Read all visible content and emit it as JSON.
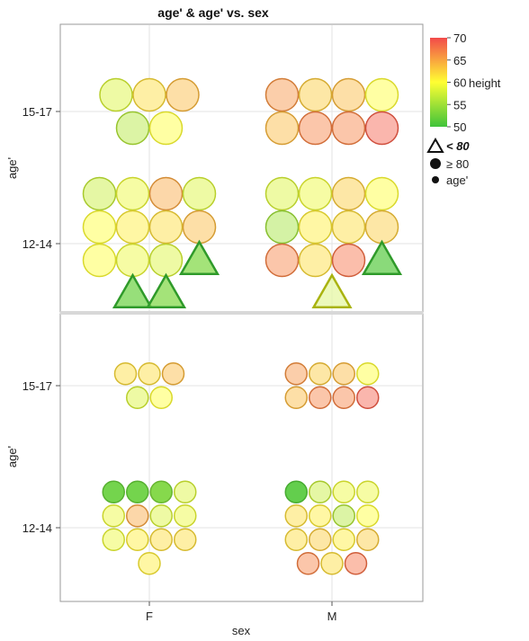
{
  "chart_data": {
    "type": "scatter",
    "title": "age' & age' vs. sex",
    "xlabel": "sex",
    "categories": [
      "F",
      "M"
    ],
    "panels": [
      {
        "ylabel": "age'",
        "y_categories": [
          "12-14",
          "15-17"
        ],
        "size_scale": "large",
        "points": [
          {
            "sex": "F",
            "age": "15-17",
            "height": 58,
            "weight": "high"
          },
          {
            "sex": "F",
            "age": "15-17",
            "height": 62,
            "weight": "high"
          },
          {
            "sex": "F",
            "age": "15-17",
            "height": 64,
            "weight": "high"
          },
          {
            "sex": "F",
            "age": "15-17",
            "height": 56,
            "weight": "high"
          },
          {
            "sex": "F",
            "age": "15-17",
            "height": 60,
            "weight": "high"
          },
          {
            "sex": "F",
            "age": "12-14",
            "height": 57,
            "weight": "high"
          },
          {
            "sex": "F",
            "age": "12-14",
            "height": 59,
            "weight": "high"
          },
          {
            "sex": "F",
            "age": "12-14",
            "height": 65,
            "weight": "high"
          },
          {
            "sex": "F",
            "age": "12-14",
            "height": 58,
            "weight": "high"
          },
          {
            "sex": "F",
            "age": "12-14",
            "height": 60,
            "weight": "high"
          },
          {
            "sex": "F",
            "age": "12-14",
            "height": 61,
            "weight": "high"
          },
          {
            "sex": "F",
            "age": "12-14",
            "height": 62,
            "weight": "high"
          },
          {
            "sex": "F",
            "age": "12-14",
            "height": 64,
            "weight": "high"
          },
          {
            "sex": "F",
            "age": "12-14",
            "height": 60,
            "weight": "high"
          },
          {
            "sex": "F",
            "age": "12-14",
            "height": 59,
            "weight": "high"
          },
          {
            "sex": "F",
            "age": "12-14",
            "height": 58,
            "weight": "high"
          },
          {
            "sex": "F",
            "age": "12-14",
            "height": 53,
            "weight": "low"
          },
          {
            "sex": "F",
            "age": "12-14",
            "height": 52,
            "weight": "low"
          },
          {
            "sex": "F",
            "age": "12-14",
            "height": 53,
            "weight": "low"
          },
          {
            "sex": "M",
            "age": "15-17",
            "height": 66,
            "weight": "high"
          },
          {
            "sex": "M",
            "age": "15-17",
            "height": 63,
            "weight": "high"
          },
          {
            "sex": "M",
            "age": "15-17",
            "height": 64,
            "weight": "high"
          },
          {
            "sex": "M",
            "age": "15-17",
            "height": 60,
            "weight": "high"
          },
          {
            "sex": "M",
            "age": "15-17",
            "height": 64,
            "weight": "high"
          },
          {
            "sex": "M",
            "age": "15-17",
            "height": 67,
            "weight": "high"
          },
          {
            "sex": "M",
            "age": "15-17",
            "height": 67,
            "weight": "high"
          },
          {
            "sex": "M",
            "age": "15-17",
            "height": 69,
            "weight": "high"
          },
          {
            "sex": "M",
            "age": "12-14",
            "height": 58,
            "weight": "high"
          },
          {
            "sex": "M",
            "age": "12-14",
            "height": 59,
            "weight": "high"
          },
          {
            "sex": "M",
            "age": "12-14",
            "height": 63,
            "weight": "high"
          },
          {
            "sex": "M",
            "age": "12-14",
            "height": 60,
            "weight": "high"
          },
          {
            "sex": "M",
            "age": "12-14",
            "height": 55,
            "weight": "high"
          },
          {
            "sex": "M",
            "age": "12-14",
            "height": 61,
            "weight": "high"
          },
          {
            "sex": "M",
            "age": "12-14",
            "height": 62,
            "weight": "high"
          },
          {
            "sex": "M",
            "age": "12-14",
            "height": 63,
            "weight": "high"
          },
          {
            "sex": "M",
            "age": "12-14",
            "height": 67,
            "weight": "high"
          },
          {
            "sex": "M",
            "age": "12-14",
            "height": 62,
            "weight": "high"
          },
          {
            "sex": "M",
            "age": "12-14",
            "height": 68,
            "weight": "high"
          },
          {
            "sex": "M",
            "age": "12-14",
            "height": 51,
            "weight": "low"
          },
          {
            "sex": "M",
            "age": "12-14",
            "height": 57,
            "weight": "low"
          }
        ]
      },
      {
        "ylabel": "age'",
        "y_categories": [
          "12-14",
          "15-17"
        ],
        "size_scale": "small",
        "points": [
          {
            "sex": "F",
            "age": "15-17",
            "height": 62
          },
          {
            "sex": "F",
            "age": "15-17",
            "height": 62
          },
          {
            "sex": "F",
            "age": "15-17",
            "height": 64
          },
          {
            "sex": "F",
            "age": "15-17",
            "height": 58
          },
          {
            "sex": "F",
            "age": "15-17",
            "height": 60
          },
          {
            "sex": "F",
            "age": "12-14",
            "height": 52
          },
          {
            "sex": "F",
            "age": "12-14",
            "height": 52
          },
          {
            "sex": "F",
            "age": "12-14",
            "height": 53
          },
          {
            "sex": "F",
            "age": "12-14",
            "height": 58
          },
          {
            "sex": "F",
            "age": "12-14",
            "height": 59
          },
          {
            "sex": "F",
            "age": "12-14",
            "height": 65
          },
          {
            "sex": "F",
            "age": "12-14",
            "height": 58
          },
          {
            "sex": "F",
            "age": "12-14",
            "height": 59
          },
          {
            "sex": "F",
            "age": "12-14",
            "height": 59
          },
          {
            "sex": "F",
            "age": "12-14",
            "height": 61
          },
          {
            "sex": "F",
            "age": "12-14",
            "height": 62
          },
          {
            "sex": "F",
            "age": "12-14",
            "height": 62
          },
          {
            "sex": "F",
            "age": "12-14",
            "height": 61
          },
          {
            "sex": "M",
            "age": "15-17",
            "height": 66
          },
          {
            "sex": "M",
            "age": "15-17",
            "height": 63
          },
          {
            "sex": "M",
            "age": "15-17",
            "height": 64
          },
          {
            "sex": "M",
            "age": "15-17",
            "height": 60
          },
          {
            "sex": "M",
            "age": "15-17",
            "height": 64
          },
          {
            "sex": "M",
            "age": "15-17",
            "height": 67
          },
          {
            "sex": "M",
            "age": "15-17",
            "height": 67
          },
          {
            "sex": "M",
            "age": "15-17",
            "height": 69
          },
          {
            "sex": "M",
            "age": "12-14",
            "height": 51
          },
          {
            "sex": "M",
            "age": "12-14",
            "height": 57
          },
          {
            "sex": "M",
            "age": "12-14",
            "height": 59
          },
          {
            "sex": "M",
            "age": "12-14",
            "height": 59
          },
          {
            "sex": "M",
            "age": "12-14",
            "height": 62
          },
          {
            "sex": "M",
            "age": "12-14",
            "height": 61
          },
          {
            "sex": "M",
            "age": "12-14",
            "height": 56
          },
          {
            "sex": "M",
            "age": "12-14",
            "height": 60
          },
          {
            "sex": "M",
            "age": "12-14",
            "height": 62
          },
          {
            "sex": "M",
            "age": "12-14",
            "height": 63
          },
          {
            "sex": "M",
            "age": "12-14",
            "height": 61
          },
          {
            "sex": "M",
            "age": "12-14",
            "height": 63
          },
          {
            "sex": "M",
            "age": "12-14",
            "height": 67
          },
          {
            "sex": "M",
            "age": "12-14",
            "height": 62
          },
          {
            "sex": "M",
            "age": "12-14",
            "height": 68
          }
        ]
      }
    ],
    "color_legend": {
      "variable": "height",
      "ticks": [
        50,
        55,
        60,
        65,
        70
      ],
      "range": [
        50,
        70
      ],
      "colors": {
        "low": "#3fc33a",
        "mid": "#ffff33",
        "high": "#f24a4a"
      }
    },
    "shape_legend": [
      {
        "symbol": "triangle",
        "label": "< 80"
      },
      {
        "symbol": "circle",
        "label": "≥ 80"
      },
      {
        "symbol": "dot",
        "label": "age'"
      }
    ],
    "grid": true,
    "legend_position": "right"
  }
}
